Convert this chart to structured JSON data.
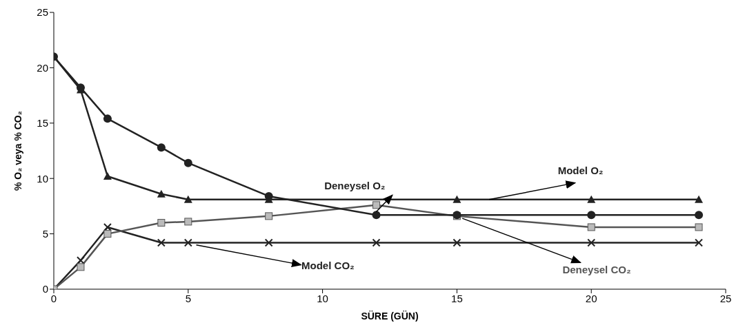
{
  "chart_data": {
    "type": "line",
    "xlabel": "SÜRE (GÜN)",
    "ylabel": "% O₂ veya % CO₂",
    "xlim": [
      0,
      25
    ],
    "xticks": [
      0,
      5,
      10,
      15,
      20,
      25
    ],
    "ylim": [
      0,
      25
    ],
    "yticks": [
      0,
      5,
      10,
      15,
      20,
      25
    ],
    "grid": false,
    "line_style": "solid",
    "series": [
      {
        "name": "Deneysel O₂",
        "color": "#222222",
        "marker": "circle",
        "x": [
          0,
          1,
          2,
          4,
          5,
          8,
          12,
          15,
          20,
          24
        ],
        "values": [
          21,
          18.2,
          15.4,
          12.8,
          11.4,
          8.4,
          6.7,
          6.7,
          6.7,
          6.7
        ]
      },
      {
        "name": "Model O₂",
        "color": "#222222",
        "marker": "triangle",
        "x": [
          0,
          1,
          2,
          4,
          5,
          8,
          15,
          20,
          24
        ],
        "values": [
          21,
          18,
          10.2,
          8.6,
          8.1,
          8.1,
          8.1,
          8.1,
          8.1
        ]
      },
      {
        "name": "Deneysel CO₂",
        "color": "#555555",
        "marker": "square",
        "x": [
          0,
          1,
          2,
          4,
          5,
          8,
          12,
          15,
          20,
          24
        ],
        "values": [
          0,
          2,
          5,
          6,
          6.1,
          6.6,
          7.6,
          6.6,
          5.6,
          5.6
        ]
      },
      {
        "name": "Model CO₂",
        "color": "#222222",
        "marker": "cross",
        "x": [
          0,
          1,
          2,
          4,
          5,
          8,
          12,
          15,
          20,
          24
        ],
        "values": [
          0,
          2.6,
          5.6,
          4.2,
          4.2,
          4.2,
          4.2,
          4.2,
          4.2,
          4.2
        ]
      }
    ]
  }
}
